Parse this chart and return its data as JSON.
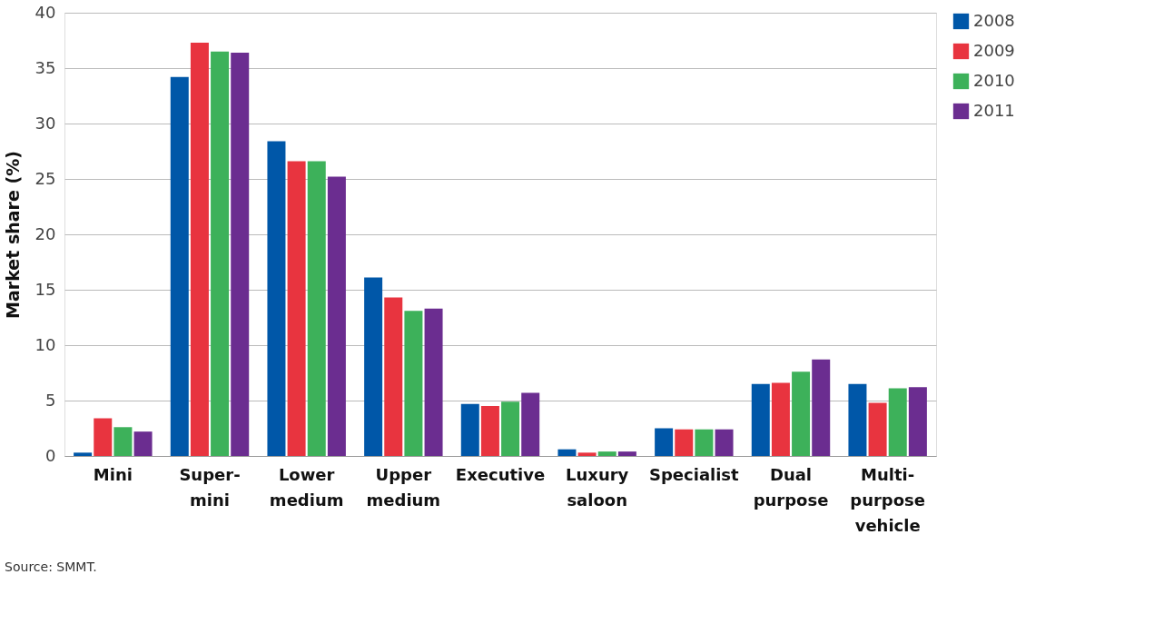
{
  "chart_data": {
    "type": "bar",
    "ylabel": "Market share (%)",
    "categories": [
      "Mini",
      "Super-mini",
      "Lower medium",
      "Upper medium",
      "Executive",
      "Luxury saloon",
      "Specialist",
      "Dual purpose",
      "Multi-purpose vehicle"
    ],
    "series": [
      {
        "name": "2008",
        "color": "#0057a8",
        "values": [
          0.3,
          34.2,
          28.4,
          16.1,
          4.7,
          0.6,
          2.5,
          6.5,
          6.5
        ]
      },
      {
        "name": "2009",
        "color": "#e8343f",
        "values": [
          3.4,
          37.3,
          26.6,
          14.3,
          4.5,
          0.3,
          2.4,
          6.6,
          4.8
        ]
      },
      {
        "name": "2010",
        "color": "#3db15a",
        "values": [
          2.6,
          36.5,
          26.6,
          13.1,
          4.9,
          0.4,
          2.4,
          7.6,
          6.1
        ]
      },
      {
        "name": "2011",
        "color": "#6b2d90",
        "values": [
          2.2,
          36.4,
          25.2,
          13.3,
          5.7,
          0.4,
          2.4,
          8.7,
          6.2
        ]
      }
    ],
    "ylim": [
      0,
      40
    ],
    "yticks": [
      0,
      5,
      10,
      15,
      20,
      25,
      30,
      35,
      40
    ],
    "grid": "y",
    "legend": "top right",
    "annotations": [
      "Source: SMMT."
    ]
  }
}
